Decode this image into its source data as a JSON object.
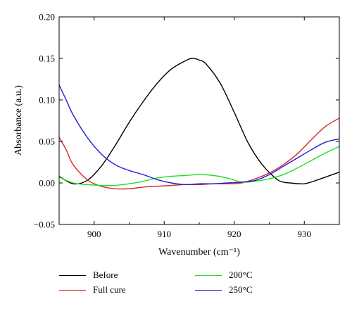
{
  "chart_data": {
    "type": "line",
    "title": "",
    "xlabel": "Wavenumber (cm⁻¹)",
    "ylabel": "Absorbance (a.u.)",
    "xlim": [
      895,
      935
    ],
    "ylim": [
      -0.05,
      0.2
    ],
    "xticks": [
      900,
      910,
      920,
      930
    ],
    "xtick_labels": [
      "900",
      "910",
      "920",
      "930"
    ],
    "yticks": [
      -0.05,
      0.0,
      0.05,
      0.1,
      0.15,
      0.2
    ],
    "ytick_labels": [
      "−0.05",
      "0.00",
      "0.05",
      "0.10",
      "0.15",
      "0.20"
    ],
    "grid": false,
    "legend_position": "bottom",
    "series": [
      {
        "name": "Before",
        "color": "#000000",
        "x": [
          895,
          897,
          899,
          901,
          903,
          905,
          907,
          909,
          911,
          913,
          914,
          915,
          916,
          918,
          920,
          922,
          924,
          926,
          927,
          928,
          930,
          932,
          934,
          935
        ],
        "y": [
          0.008,
          -0.001,
          0.003,
          0.02,
          0.045,
          0.073,
          0.098,
          0.12,
          0.137,
          0.147,
          0.15,
          0.148,
          0.143,
          0.12,
          0.085,
          0.048,
          0.022,
          0.005,
          0.001,
          0.0,
          -0.001,
          0.004,
          0.01,
          0.013
        ]
      },
      {
        "name": "Full cure",
        "color": "#d62728",
        "x": [
          895,
          896,
          897,
          899,
          901,
          903,
          905,
          907,
          909,
          911,
          913,
          915,
          917,
          919,
          921,
          923,
          925,
          927,
          929,
          931,
          933,
          935
        ],
        "y": [
          0.055,
          0.04,
          0.022,
          0.004,
          -0.004,
          -0.007,
          -0.007,
          -0.005,
          -0.004,
          -0.003,
          -0.002,
          -0.002,
          -0.001,
          -0.001,
          0.0,
          0.005,
          0.012,
          0.022,
          0.035,
          0.052,
          0.068,
          0.078
        ]
      },
      {
        "name": "200°C",
        "color": "#22dd22",
        "x": [
          895,
          897,
          899,
          901,
          903,
          905,
          907,
          909,
          911,
          913,
          915,
          917,
          919,
          921,
          923,
          925,
          927,
          929,
          931,
          933,
          935
        ],
        "y": [
          0.007,
          0.0,
          -0.002,
          -0.003,
          -0.003,
          -0.001,
          0.002,
          0.006,
          0.008,
          0.009,
          0.01,
          0.009,
          0.006,
          0.001,
          0.002,
          0.005,
          0.01,
          0.018,
          0.027,
          0.036,
          0.044
        ]
      },
      {
        "name": "250°C",
        "color": "#1f1fd6",
        "x": [
          895,
          896,
          897,
          899,
          901,
          903,
          905,
          907,
          909,
          911,
          913,
          915,
          917,
          919,
          921,
          923,
          925,
          927,
          929,
          931,
          933,
          935
        ],
        "y": [
          0.118,
          0.1,
          0.082,
          0.055,
          0.035,
          0.022,
          0.015,
          0.01,
          0.004,
          0.0,
          -0.002,
          -0.001,
          -0.001,
          0.0,
          0.001,
          0.003,
          0.01,
          0.02,
          0.03,
          0.04,
          0.049,
          0.053
        ]
      }
    ],
    "legend_order": [
      0,
      1,
      2,
      3
    ]
  }
}
